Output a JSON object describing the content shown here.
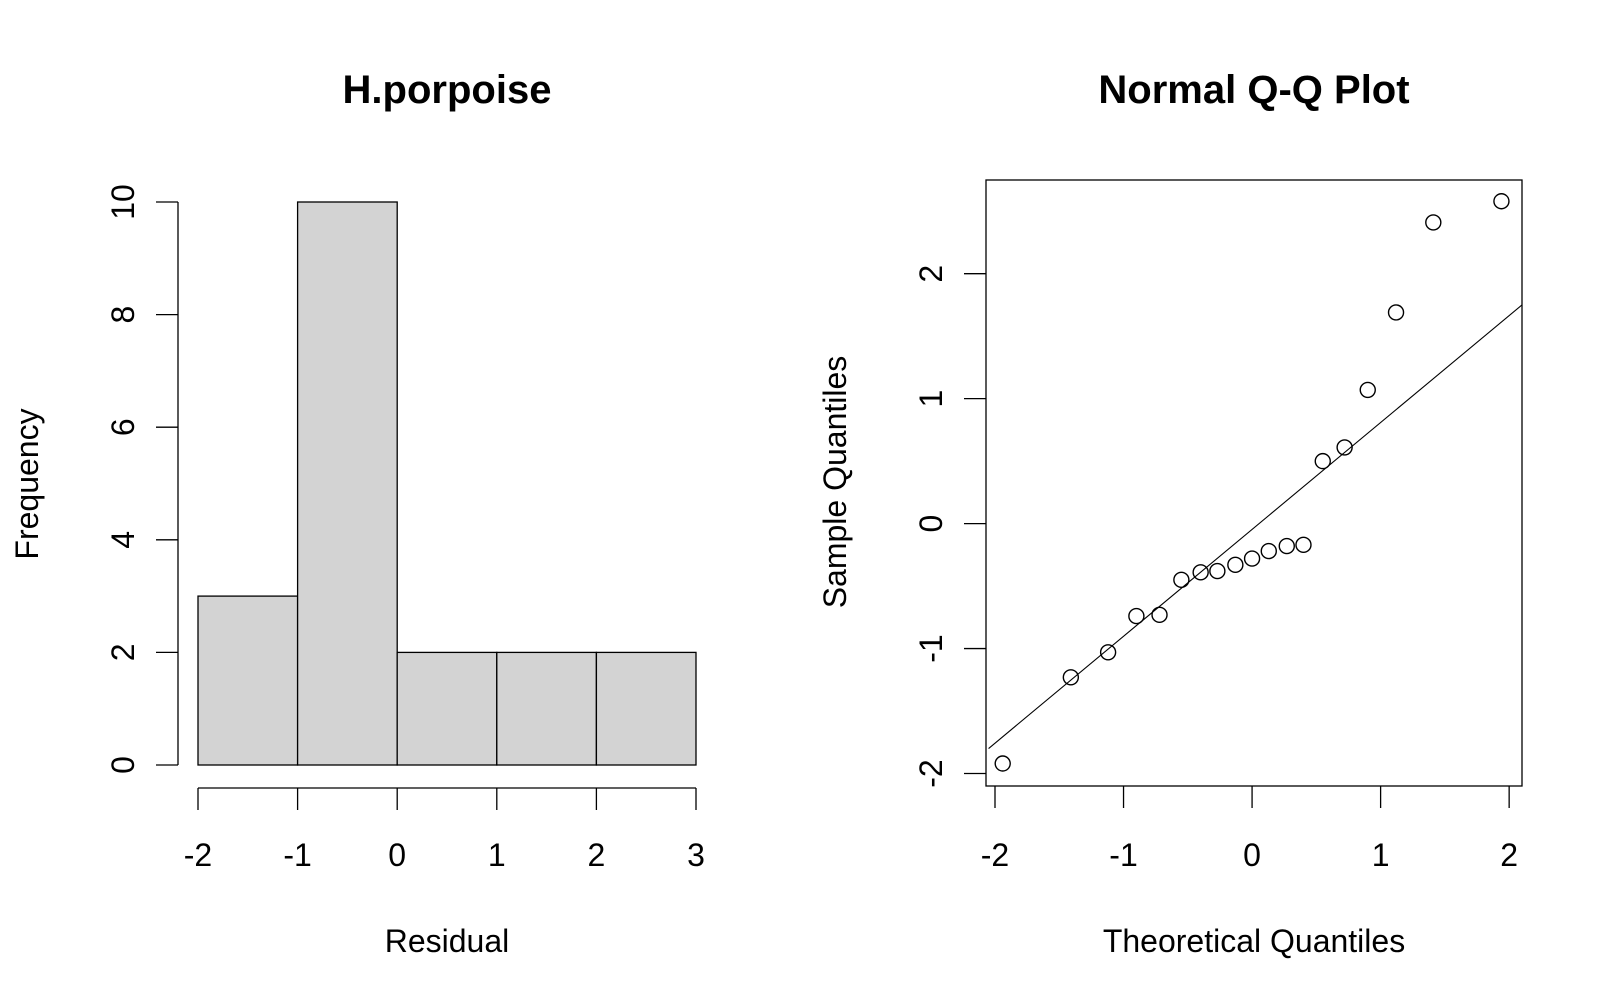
{
  "chart_data": [
    {
      "type": "bar",
      "subtype": "histogram",
      "title": "H.porpoise",
      "xlabel": "Residual",
      "ylabel": "Frequency",
      "bins": [
        [
          -2,
          -1
        ],
        [
          -1,
          0
        ],
        [
          0,
          1
        ],
        [
          1,
          2
        ],
        [
          2,
          3
        ]
      ],
      "values": [
        3,
        10,
        2,
        2,
        2
      ],
      "xticks": [
        -2,
        -1,
        0,
        1,
        2,
        3
      ],
      "yticks": [
        0,
        2,
        4,
        6,
        8,
        10
      ],
      "xlim": [
        -2,
        3
      ],
      "ylim": [
        0,
        10
      ],
      "bar_color": "#d3d3d3",
      "grid": false
    },
    {
      "type": "scatter",
      "title": "Normal Q-Q Plot",
      "xlabel": "Theoretical Quantiles",
      "ylabel": "Sample Quantiles",
      "x": [
        -1.94,
        -1.41,
        -1.12,
        -0.9,
        -0.72,
        -0.55,
        -0.4,
        -0.27,
        -0.13,
        0.0,
        0.13,
        0.27,
        0.4,
        0.55,
        0.72,
        0.9,
        1.12,
        1.41,
        1.94
      ],
      "y": [
        -1.92,
        -1.23,
        -1.03,
        -0.74,
        -0.73,
        -0.45,
        -0.39,
        -0.38,
        -0.33,
        -0.28,
        -0.22,
        -0.18,
        -0.17,
        0.5,
        0.61,
        1.07,
        1.69,
        2.41,
        2.58
      ],
      "reference_line": {
        "x": [
          -2.05,
          2.1
        ],
        "y": [
          -1.8,
          1.75
        ]
      },
      "xticks": [
        -2,
        -1,
        0,
        1,
        2
      ],
      "yticks": [
        -2,
        -1,
        0,
        1,
        2
      ],
      "xlim": [
        -2.07,
        2.1
      ],
      "ylim": [
        -2.1,
        2.75
      ],
      "marker": "open-circle",
      "grid": false
    }
  ]
}
